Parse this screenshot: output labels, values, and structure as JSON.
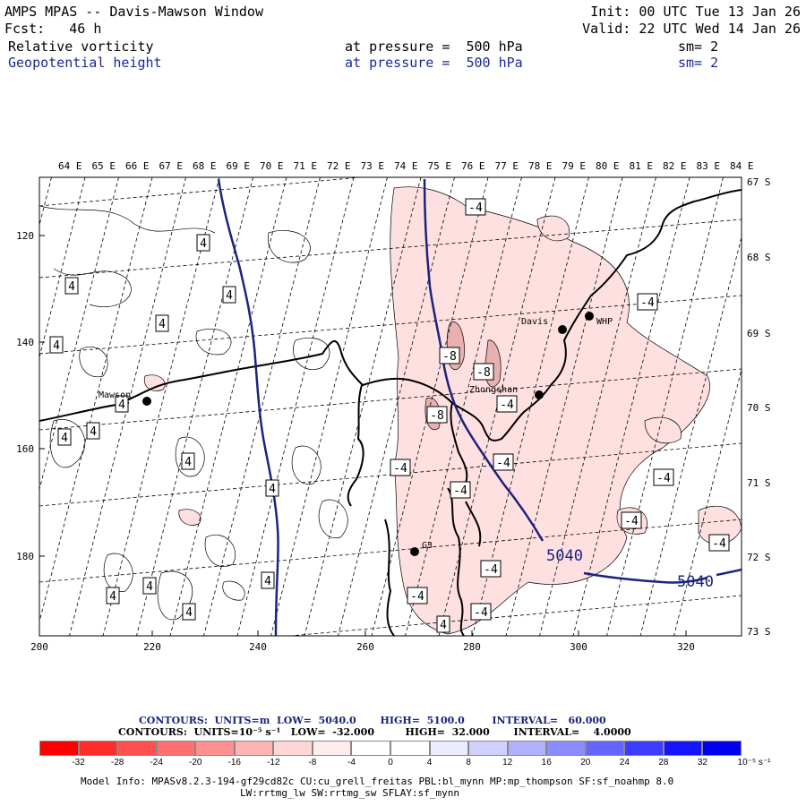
{
  "header": {
    "title": "AMPS MPAS -- Davis-Mawson Window",
    "init": "Init: 00 UTC Tue 13 Jan 26",
    "fcst": "Fcst:   46 h",
    "valid": "Valid: 22 UTC Wed 14 Jan 26",
    "field1": {
      "name": "Relative vorticity",
      "level": "at pressure =  500 hPa",
      "sm": "sm= 2"
    },
    "field2": {
      "name": "Geopotential height",
      "level": "at pressure =  500 hPa",
      "sm": "sm= 2"
    }
  },
  "map": {
    "lon_labels": [
      "64 E",
      "65 E",
      "66 E",
      "67 E",
      "68 E",
      "69 E",
      "70 E",
      "71 E",
      "72 E",
      "73 E",
      "74 E",
      "75 E",
      "76 E",
      "77 E",
      "78 E",
      "79 E",
      "80 E",
      "81 E",
      "82 E",
      "83 E",
      "84 E"
    ],
    "lat_labels": [
      "67 S",
      "68 S",
      "69 S",
      "70 S",
      "71 S",
      "72 S",
      "73 S"
    ],
    "x_ticks": [
      "200",
      "220",
      "240",
      "260",
      "280",
      "300",
      "320"
    ],
    "y_ticks": [
      "120",
      "140",
      "160",
      "180"
    ],
    "stations": [
      {
        "name": "Mawson"
      },
      {
        "name": "Davis"
      },
      {
        "name": "WHP"
      },
      {
        "name": "Zhongshan"
      },
      {
        "name": "G3"
      }
    ],
    "height_labels": [
      "5040",
      "5040"
    ],
    "vort_labels": [
      "4",
      "4",
      "4",
      "4",
      "4",
      "4",
      "4",
      "4",
      "4",
      "4",
      "4",
      "4",
      "4",
      "4",
      "4",
      "-4",
      "-8",
      "-8",
      "-8",
      "-4",
      "-4",
      "-4",
      "-4",
      "-4",
      "-4",
      "-4",
      "-4",
      "-4",
      "-4",
      "-4"
    ]
  },
  "legend": {
    "line1": "CONTOURS:  UNITS=m  LOW=  5040.0       HIGH=  5100.0        INTERVAL=   60.000",
    "line2": "CONTOURS:  UNITS=10⁻⁵ s⁻¹   LOW=  -32.000         HIGH=  32.000       INTERVAL=    4.0000",
    "colors": [
      "#ff0000",
      "#ff2c2c",
      "#ff5050",
      "#ff7070",
      "#ff9090",
      "#ffb4b4",
      "#ffd6d6",
      "#ffecec",
      "#ffffff",
      "#ffffff",
      "#ececff",
      "#d0d0ff",
      "#b0b0ff",
      "#8c8cff",
      "#6464ff",
      "#3c3cff",
      "#1414ff",
      "#0000ee"
    ],
    "tick_labels": [
      "-32",
      "-28",
      "-24",
      "-20",
      "-16",
      "-12",
      "-8",
      "-4",
      "0",
      "4",
      "8",
      "12",
      "16",
      "20",
      "24",
      "28",
      "32"
    ],
    "units": "10⁻⁵ s⁻¹"
  },
  "model_info": {
    "line1": "Model Info: MPASv8.2.3-194-gf29cd82c CU:cu_grell_freitas PBL:bl_mynn MP:mp_thompson SF:sf_noahmp 8.0",
    "line2": "LW:rrtmg_lw SW:rrtmg_sw SFLAY:sf_mynn"
  }
}
